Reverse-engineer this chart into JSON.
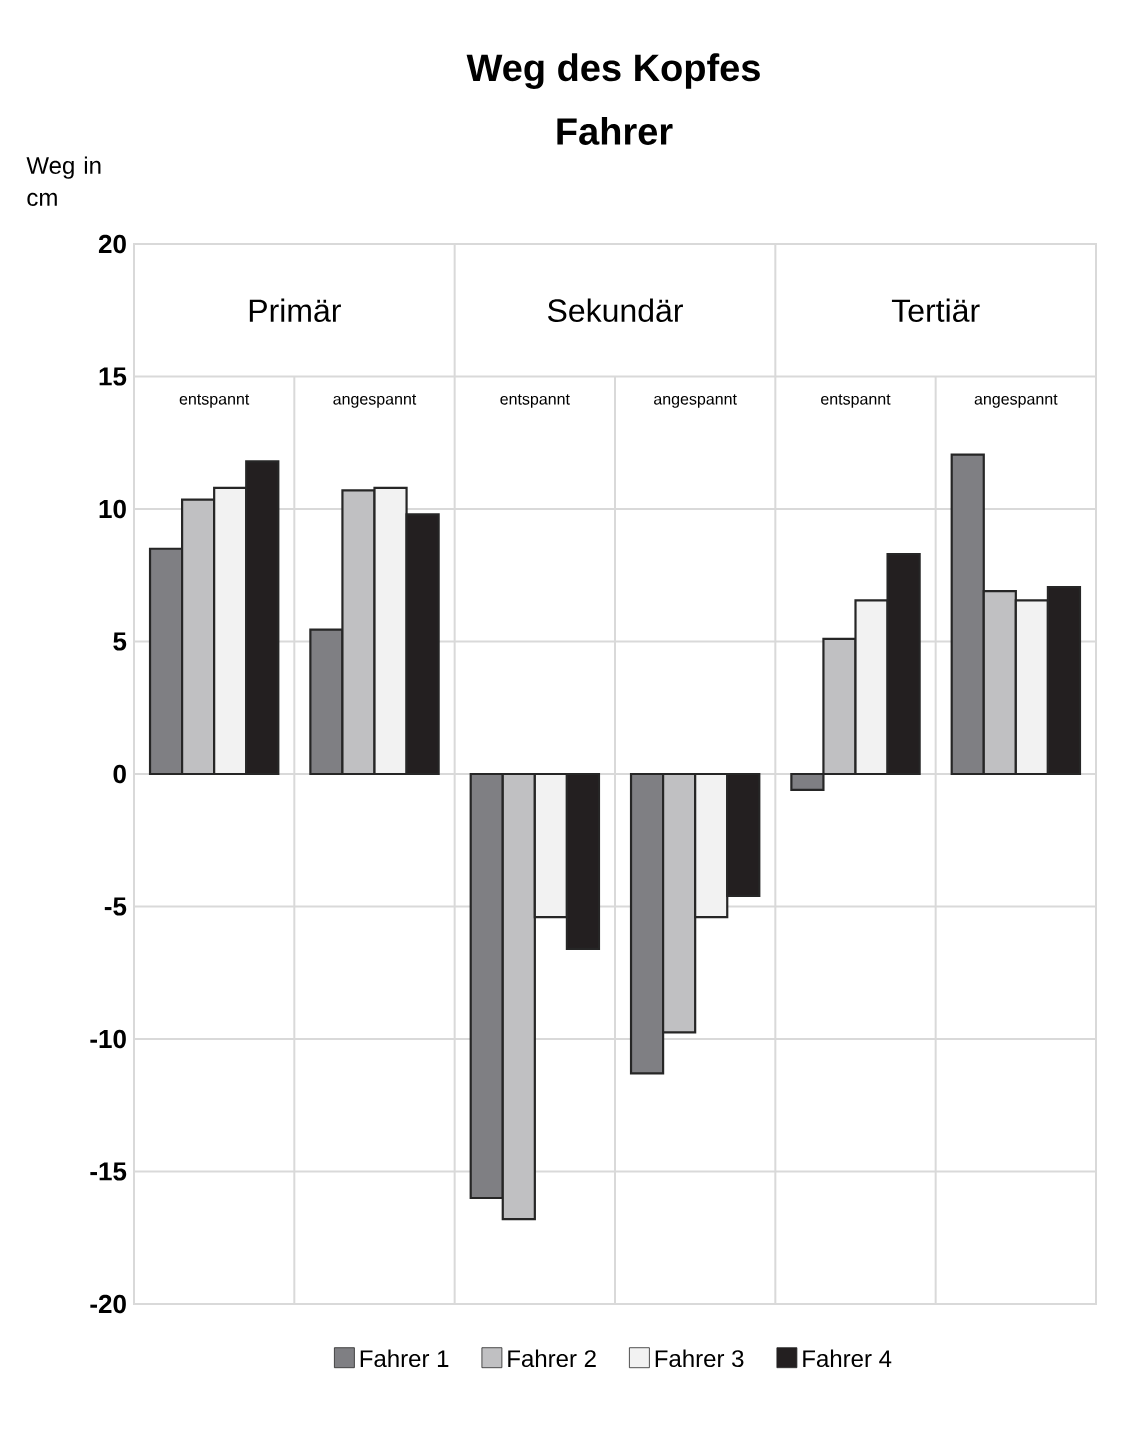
{
  "chart_data": {
    "type": "bar",
    "title": "Weg des Kopfes",
    "subtitle": "Fahrer",
    "ylabel": "Weg in cm",
    "categories": [
      "entspannt",
      "angespannt",
      "entspannt",
      "angespannt",
      "entspannt",
      "angespannt"
    ],
    "annotations": [
      "Primär",
      "Sekundär",
      "Tertiär"
    ],
    "series": [
      {
        "name": "Fahrer 1",
        "color": "#7f7f83",
        "values": [
          8.5,
          5.45,
          -16.0,
          -11.3,
          -0.6,
          12.05
        ]
      },
      {
        "name": "Fahrer 2",
        "color": "#c0c0c2",
        "values": [
          10.35,
          10.7,
          -16.8,
          -9.75,
          5.1,
          6.9
        ]
      },
      {
        "name": "Fahrer 3",
        "color": "#f2f2f2",
        "values": [
          10.8,
          10.8,
          -5.4,
          -5.4,
          6.55,
          6.55
        ]
      },
      {
        "name": "Fahrer 4",
        "color": "#231f20",
        "values": [
          11.8,
          9.8,
          -6.6,
          -4.6,
          8.3,
          7.05
        ]
      }
    ],
    "ylim": [
      -20,
      20
    ],
    "yticks": [
      -20,
      -15,
      -10,
      -5,
      0,
      5,
      10,
      15,
      20
    ],
    "grid": "y",
    "legend": "bottom"
  }
}
